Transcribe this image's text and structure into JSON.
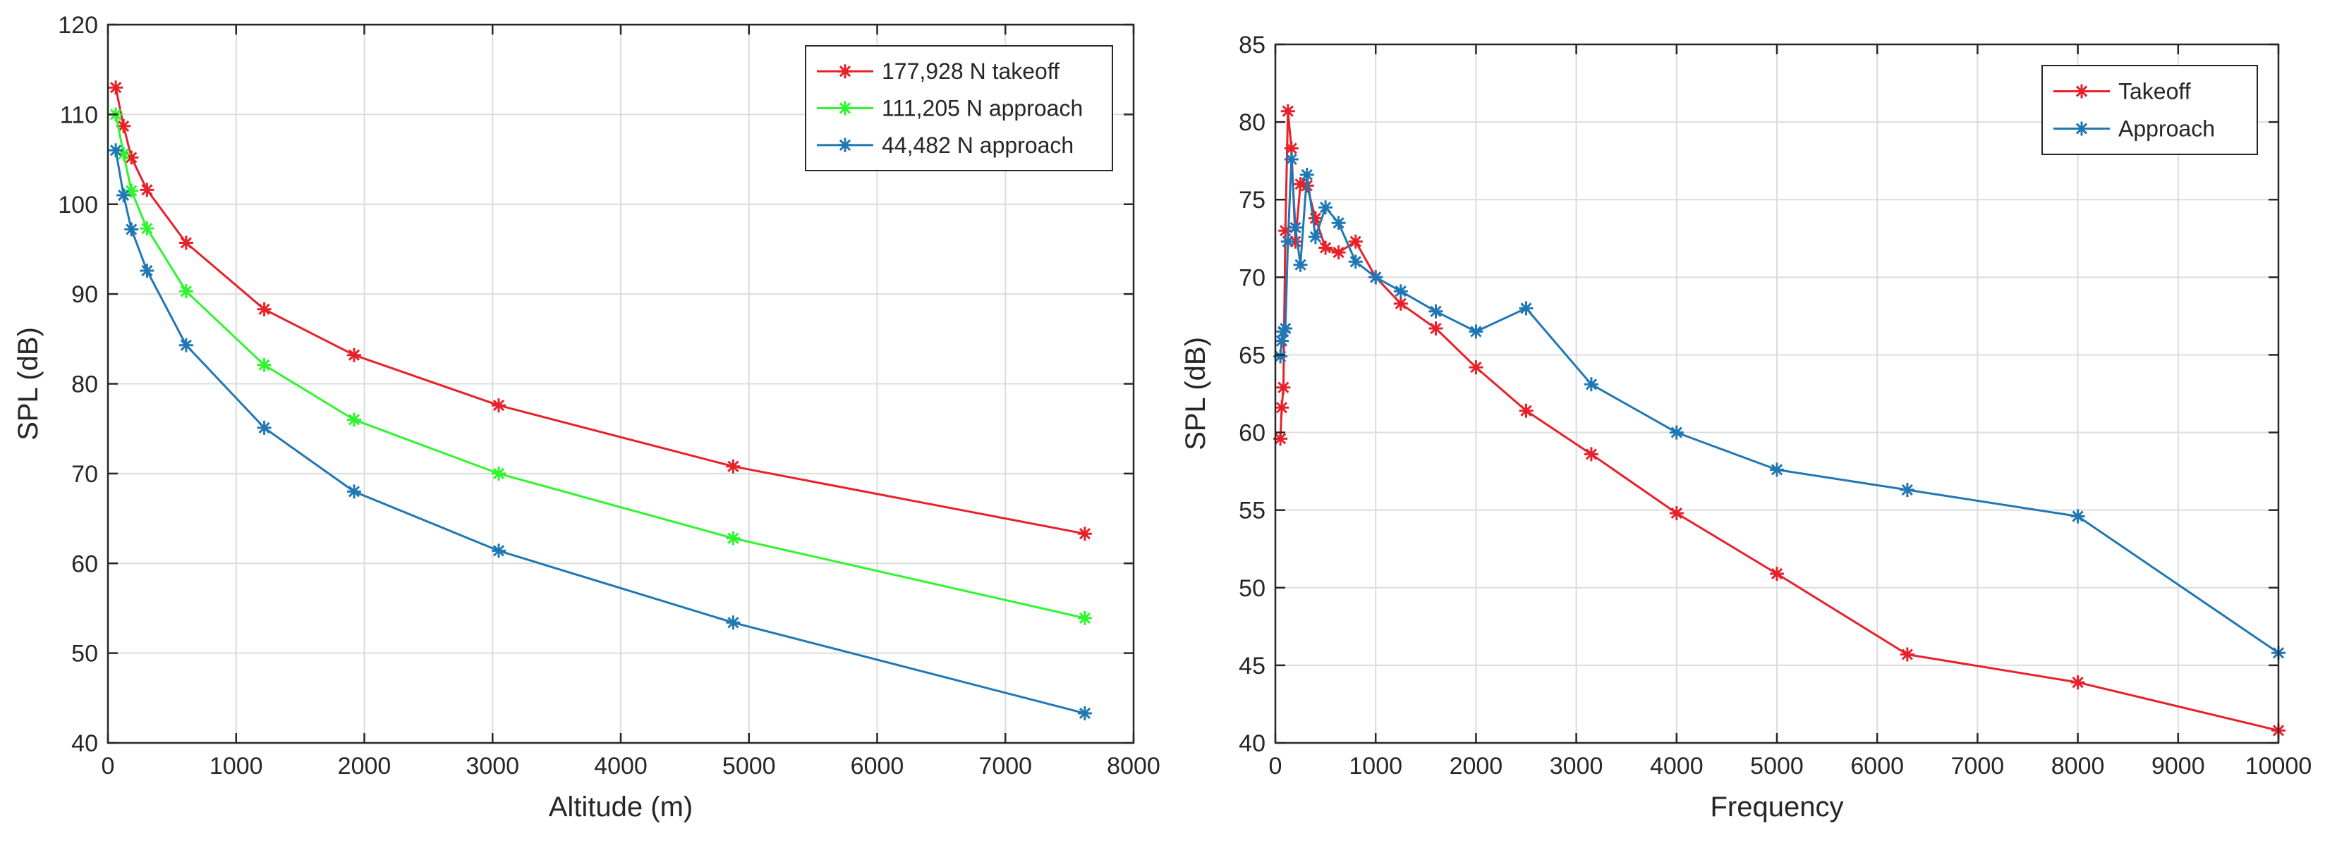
{
  "chart_data": [
    {
      "type": "line",
      "xlabel": "Altitude (m)",
      "ylabel": "SPL (dB)",
      "xlim": [
        0,
        8000
      ],
      "ylim": [
        40,
        120
      ],
      "xticks": [
        0,
        1000,
        2000,
        3000,
        4000,
        5000,
        6000,
        7000,
        8000
      ],
      "yticks": [
        40,
        50,
        60,
        70,
        80,
        90,
        100,
        110,
        120
      ],
      "grid": true,
      "legend_position": "top-right",
      "series": [
        {
          "name": "177,928 N takeoff",
          "color": "#e8202a",
          "x": [
            61,
            122,
            183,
            305,
            610,
            1219,
            1920,
            3048,
            4877,
            7620
          ],
          "y": [
            113,
            108.7,
            105.2,
            101.6,
            95.7,
            88.3,
            83.2,
            77.6,
            70.8,
            63.3
          ]
        },
        {
          "name": "111,205 N approach",
          "color": "#2ef52e",
          "x": [
            61,
            122,
            183,
            305,
            610,
            1219,
            1920,
            3048,
            4877,
            7620
          ],
          "y": [
            110,
            105.6,
            101.5,
            97.3,
            90.3,
            82.1,
            76.0,
            70.0,
            62.8,
            53.9
          ]
        },
        {
          "name": "44,482 N approach",
          "color": "#1f77b4",
          "x": [
            61,
            122,
            183,
            305,
            610,
            1219,
            1920,
            3048,
            4877,
            7620
          ],
          "y": [
            106,
            101.0,
            97.2,
            92.6,
            84.3,
            75.1,
            68.0,
            61.4,
            53.4,
            43.3
          ]
        }
      ]
    },
    {
      "type": "line",
      "xlabel": "Frequency",
      "ylabel": "SPL (dB)",
      "xlim": [
        0,
        10000
      ],
      "ylim": [
        40,
        85
      ],
      "xticks": [
        0,
        1000,
        2000,
        3000,
        4000,
        5000,
        6000,
        7000,
        8000,
        9000,
        10000
      ],
      "yticks": [
        40,
        45,
        50,
        55,
        60,
        65,
        70,
        75,
        80,
        85
      ],
      "grid": true,
      "legend_position": "top-right",
      "series": [
        {
          "name": "Takeoff",
          "color": "#e8202a",
          "x": [
            50,
            63,
            80,
            100,
            125,
            160,
            200,
            250,
            315,
            400,
            500,
            630,
            800,
            1000,
            1250,
            1600,
            2000,
            2500,
            3150,
            4000,
            5000,
            6300,
            8000,
            10000
          ],
          "y": [
            59.6,
            61.6,
            62.9,
            73.0,
            80.7,
            78.3,
            72.3,
            76.0,
            75.9,
            73.8,
            71.9,
            71.6,
            72.3,
            70.0,
            68.3,
            66.7,
            64.2,
            61.4,
            58.6,
            54.8,
            50.9,
            45.7,
            43.9,
            40.8
          ]
        },
        {
          "name": "Approach",
          "color": "#1f77b4",
          "x": [
            50,
            63,
            80,
            100,
            125,
            160,
            200,
            250,
            315,
            400,
            500,
            630,
            800,
            1000,
            1250,
            1600,
            2000,
            2500,
            3150,
            4000,
            5000,
            6300,
            8000,
            10000
          ],
          "y": [
            64.9,
            65.9,
            66.5,
            66.7,
            72.3,
            77.6,
            73.2,
            70.8,
            76.6,
            72.6,
            74.5,
            73.5,
            71.0,
            70.0,
            69.1,
            67.8,
            66.5,
            68.0,
            63.1,
            60.0,
            57.6,
            56.3,
            54.6,
            45.8
          ]
        }
      ]
    }
  ]
}
